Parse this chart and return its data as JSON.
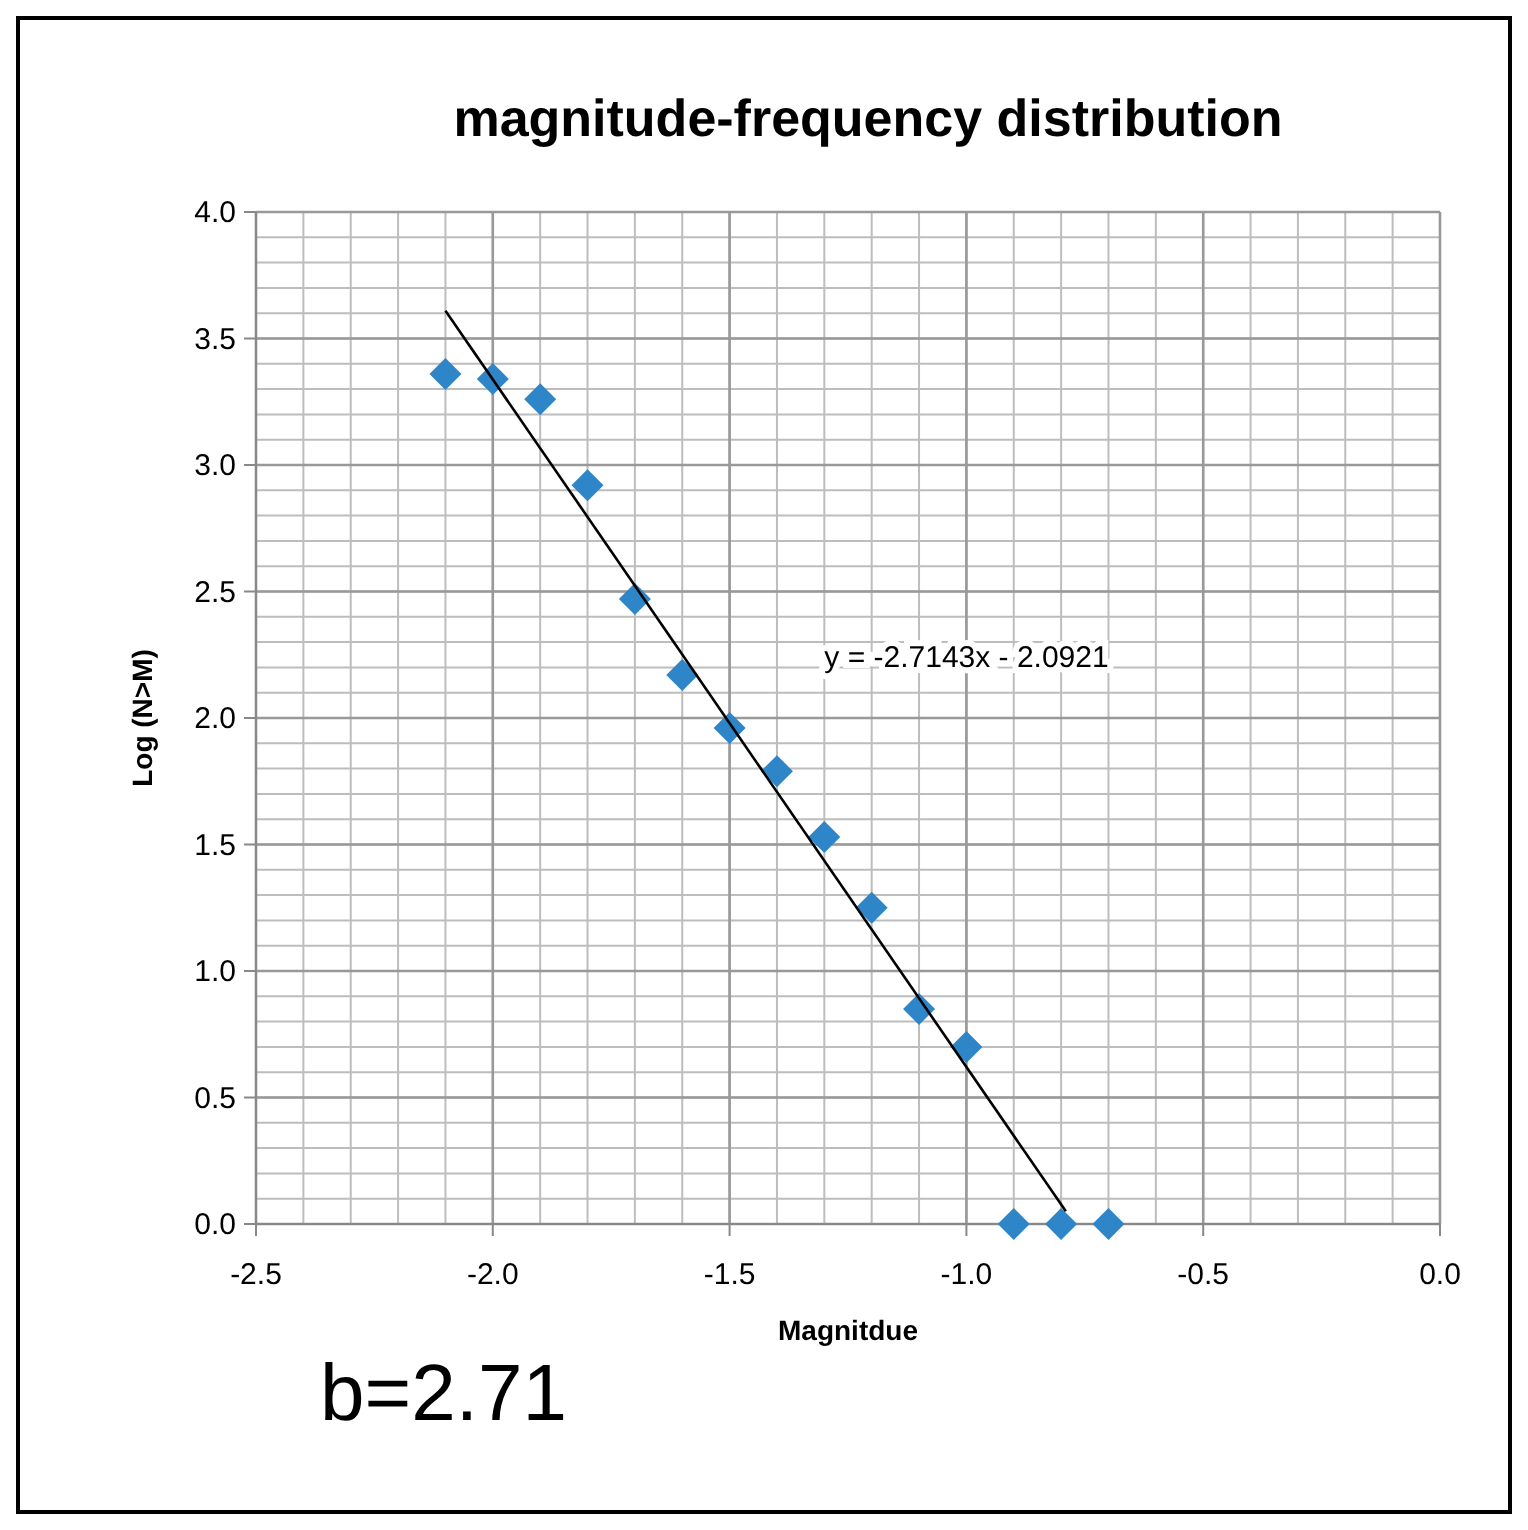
{
  "chart_data": {
    "type": "scatter",
    "title": "magnitude-frequency  distribution",
    "xlabel": "Magnitdue",
    "ylabel": "Log (N>M)",
    "x": [
      -2.1,
      -2.0,
      -1.9,
      -1.8,
      -1.7,
      -1.6,
      -1.5,
      -1.4,
      -1.3,
      -1.2,
      -1.1,
      -1.0,
      -0.9,
      -0.8,
      -0.7
    ],
    "series": [
      {
        "color": "#2e86c8",
        "marker": "diamond",
        "values": [
          3.36,
          3.34,
          3.26,
          2.92,
          2.47,
          2.17,
          1.96,
          1.79,
          1.53,
          1.25,
          0.85,
          0.7,
          0,
          0,
          0
        ]
      },
      {
        "type": "line",
        "color": "#000000",
        "marker": "none",
        "x": [
          -2.1,
          -0.79
        ],
        "values": [
          3.61,
          0.05
        ]
      }
    ],
    "xlim": [
      -2.5,
      0
    ],
    "ylim": [
      0,
      4
    ],
    "xticks": [
      {
        "value": -2.5,
        "label": "-2.5"
      },
      {
        "value": -2,
        "label": "-2.0"
      },
      {
        "value": -1.5,
        "label": "-1.5"
      },
      {
        "value": -1,
        "label": "-1.0"
      },
      {
        "value": -0.5,
        "label": "-0.5"
      },
      {
        "value": 0,
        "label": "0.0"
      }
    ],
    "yticks": [
      {
        "value": 0,
        "label": "0.0"
      },
      {
        "value": 0.5,
        "label": "0.5"
      },
      {
        "value": 1,
        "label": "1.0"
      },
      {
        "value": 1.5,
        "label": "1.5"
      },
      {
        "value": 2,
        "label": "2.0"
      },
      {
        "value": 2.5,
        "label": "2.5"
      },
      {
        "value": 3,
        "label": "3.0"
      },
      {
        "value": 3.5,
        "label": "3.5"
      },
      {
        "value": 4,
        "label": "4.0"
      }
    ],
    "grid": true,
    "annotations": [
      "y = -2.7143x - 2.0921",
      "b=2.71"
    ]
  }
}
